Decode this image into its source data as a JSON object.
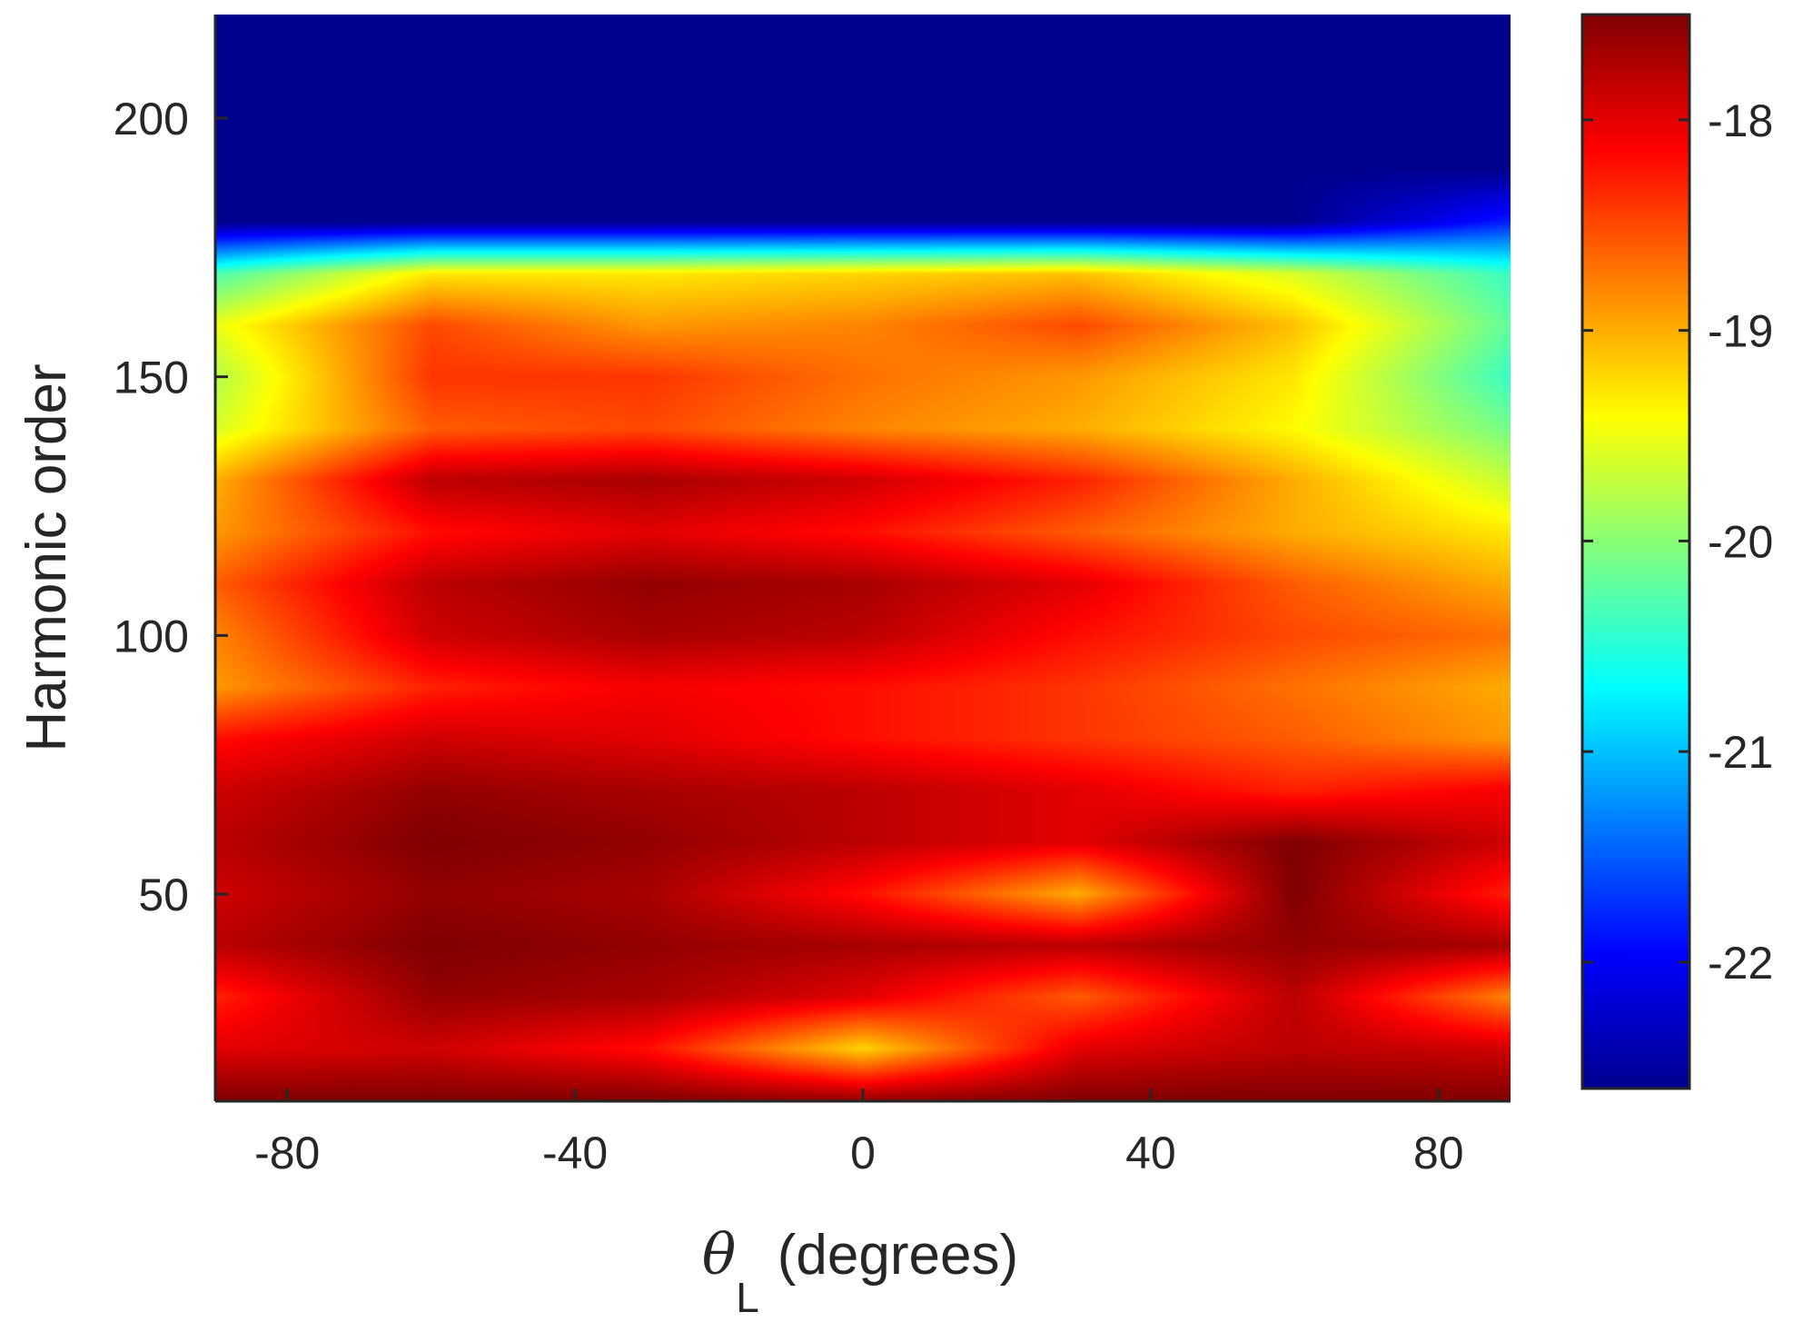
{
  "chart_data": {
    "type": "heatmap",
    "title": "",
    "xlabel_symbol": "θ",
    "xlabel_subscript": "L",
    "xlabel_unit": "(degrees)",
    "ylabel": "Harmonic order",
    "xlim": [
      -90,
      90
    ],
    "ylim": [
      10,
      220
    ],
    "x_ticks": [
      -80,
      -40,
      0,
      40,
      80
    ],
    "x_tick_labels": [
      "-80",
      "-40",
      "0",
      "40",
      "80"
    ],
    "y_ticks": [
      50,
      100,
      150,
      200
    ],
    "y_tick_labels": [
      "50",
      "100",
      "150",
      "200"
    ],
    "colorbar": {
      "clim": [
        -22.6,
        -17.5
      ],
      "ticks": [
        -22,
        -21,
        -20,
        -19,
        -18
      ],
      "tick_labels": [
        "-22",
        "-21",
        "-20",
        "-19",
        "-18"
      ],
      "colormap": "jet",
      "colors": [
        "#00008f",
        "#0000ff",
        "#00ffff",
        "#ffff00",
        "#ff0000",
        "#800000"
      ]
    },
    "z_description_grid": {
      "harmonic_order": [
        10,
        20,
        30,
        40,
        50,
        60,
        70,
        80,
        90,
        100,
        110,
        120,
        130,
        140,
        150,
        160,
        170,
        180,
        190,
        200,
        210,
        220
      ],
      "theta_deg": [
        -90,
        -60,
        -30,
        0,
        30,
        60,
        90
      ],
      "values": [
        [
          -17.5,
          -17.5,
          -17.5,
          -17.6,
          -17.5,
          -17.5,
          -17.5
        ],
        [
          -18.0,
          -17.9,
          -18.2,
          -19.2,
          -18.0,
          -17.8,
          -17.9
        ],
        [
          -18.3,
          -17.6,
          -17.7,
          -18.0,
          -18.6,
          -17.8,
          -18.8
        ],
        [
          -17.8,
          -17.5,
          -17.6,
          -17.7,
          -17.8,
          -17.6,
          -17.7
        ],
        [
          -17.9,
          -17.6,
          -17.7,
          -18.2,
          -19.0,
          -17.5,
          -18.3
        ],
        [
          -17.8,
          -17.5,
          -17.6,
          -17.8,
          -18.0,
          -17.5,
          -17.9
        ],
        [
          -17.9,
          -17.6,
          -17.7,
          -17.8,
          -18.0,
          -18.3,
          -18.1
        ],
        [
          -18.2,
          -17.9,
          -18.0,
          -18.2,
          -18.4,
          -18.6,
          -18.9
        ],
        [
          -18.9,
          -18.3,
          -18.1,
          -18.2,
          -18.4,
          -18.7,
          -19.0
        ],
        [
          -18.8,
          -17.9,
          -17.7,
          -17.8,
          -18.2,
          -18.5,
          -18.7
        ],
        [
          -18.6,
          -17.8,
          -17.6,
          -17.7,
          -18.0,
          -18.6,
          -19.0
        ],
        [
          -18.9,
          -18.2,
          -18.0,
          -18.2,
          -18.6,
          -19.0,
          -19.3
        ],
        [
          -19.0,
          -17.8,
          -17.7,
          -17.9,
          -18.3,
          -19.0,
          -19.7
        ],
        [
          -19.6,
          -18.6,
          -18.5,
          -18.8,
          -19.0,
          -19.4,
          -20.1
        ],
        [
          -19.8,
          -18.4,
          -18.4,
          -18.7,
          -18.9,
          -19.3,
          -20.4
        ],
        [
          -19.5,
          -18.5,
          -18.9,
          -18.8,
          -18.5,
          -19.1,
          -20.2
        ],
        [
          -20.3,
          -19.3,
          -19.3,
          -19.2,
          -19.1,
          -19.6,
          -20.4
        ],
        [
          -22.6,
          -22.6,
          -22.6,
          -22.6,
          -22.6,
          -22.6,
          -21.8
        ],
        [
          -22.6,
          -22.6,
          -22.6,
          -22.6,
          -22.6,
          -22.6,
          -22.6
        ],
        [
          -22.6,
          -22.6,
          -22.6,
          -22.6,
          -22.6,
          -22.6,
          -22.6
        ],
        [
          -22.6,
          -22.6,
          -22.6,
          -22.6,
          -22.6,
          -22.6,
          -22.6
        ],
        [
          -22.6,
          -22.6,
          -22.6,
          -22.6,
          -22.6,
          -22.6,
          -22.6
        ]
      ]
    }
  }
}
